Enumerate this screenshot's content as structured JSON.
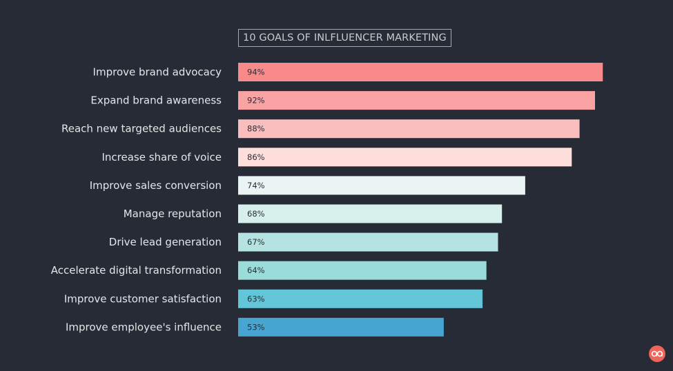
{
  "chart_data": {
    "type": "bar",
    "orientation": "horizontal",
    "title": "10 GOALS OF INLFLUENCER MARKETING",
    "categories": [
      "Improve brand advocacy",
      "Expand brand awareness",
      "Reach new targeted audiences",
      "Increase share of voice",
      "Improve sales conversion",
      "Manage reputation",
      "Drive lead generation",
      "Accelerate digital transformation",
      "Improve customer satisfaction",
      "Improve employee's influence"
    ],
    "values": [
      94,
      92,
      88,
      86,
      74,
      68,
      67,
      64,
      63,
      53
    ],
    "value_labels": [
      "94%",
      "92%",
      "88%",
      "86%",
      "74%",
      "68%",
      "67%",
      "64%",
      "63%",
      "53%"
    ],
    "bar_colors": [
      "#f98a8c",
      "#f9a3a5",
      "#fbbebe",
      "#fddeda",
      "#eaf4f3",
      "#d7f0ec",
      "#b5e3e1",
      "#99dcda",
      "#63c6d8",
      "#47a5d1"
    ],
    "xlim": [
      0,
      100
    ],
    "grid": false,
    "legend": "none"
  },
  "colors": {
    "background": "#272b35",
    "logo": "#f0645a"
  },
  "logo": {
    "icon": "quote-marks-icon"
  }
}
